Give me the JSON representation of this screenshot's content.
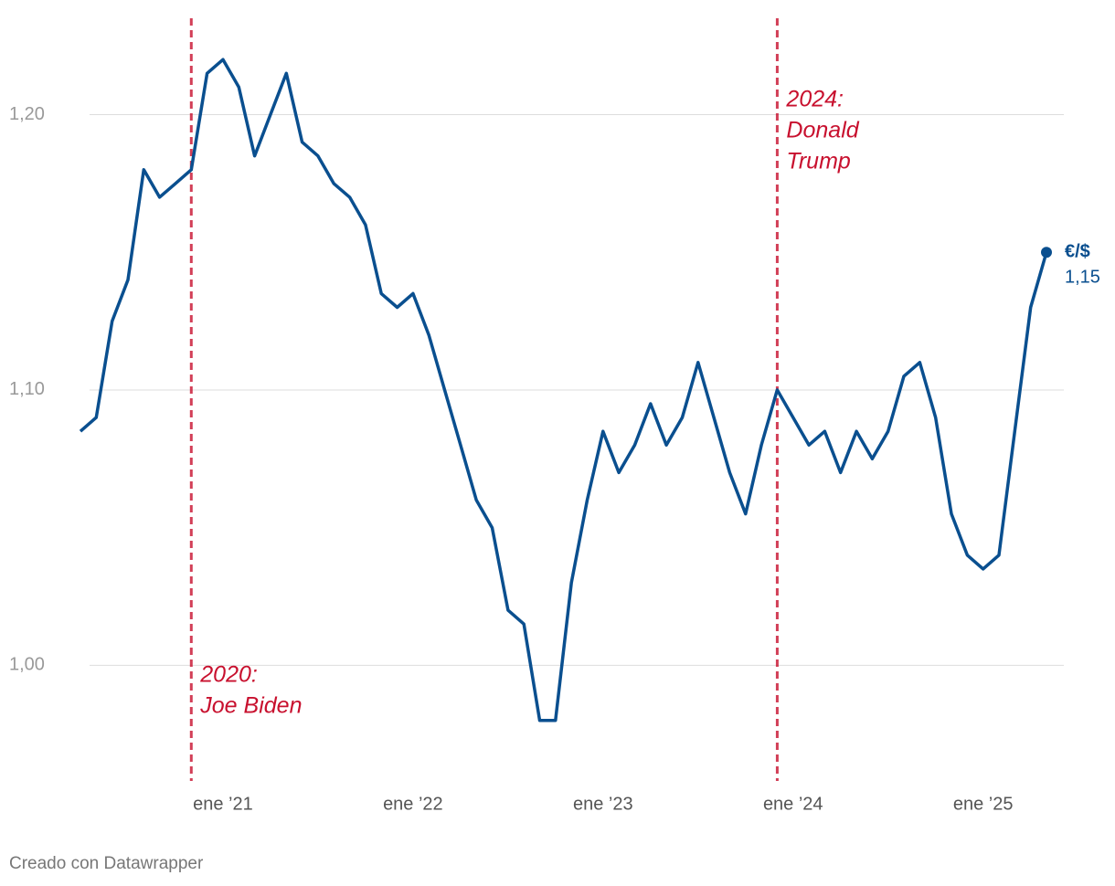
{
  "chart_data": {
    "type": "line",
    "x": [
      "2020-04",
      "2020-05",
      "2020-06",
      "2020-07",
      "2020-08",
      "2020-09",
      "2020-10",
      "2020-11",
      "2020-12",
      "2021-01",
      "2021-02",
      "2021-03",
      "2021-04",
      "2021-05",
      "2021-06",
      "2021-07",
      "2021-08",
      "2021-09",
      "2021-10",
      "2021-11",
      "2021-12",
      "2022-01",
      "2022-02",
      "2022-03",
      "2022-04",
      "2022-05",
      "2022-06",
      "2022-07",
      "2022-08",
      "2022-09",
      "2022-10",
      "2022-11",
      "2022-12",
      "2023-01",
      "2023-02",
      "2023-03",
      "2023-04",
      "2023-05",
      "2023-06",
      "2023-07",
      "2023-08",
      "2023-09",
      "2023-10",
      "2023-11",
      "2023-12",
      "2024-01",
      "2024-02",
      "2024-03",
      "2024-04",
      "2024-05",
      "2024-06",
      "2024-07",
      "2024-08",
      "2024-09",
      "2024-10",
      "2024-11",
      "2024-12",
      "2025-01",
      "2025-02",
      "2025-03",
      "2025-04",
      "2025-05"
    ],
    "series": [
      {
        "name": "€/$",
        "color": "#0a4f8f",
        "values": [
          1.085,
          1.09,
          1.125,
          1.14,
          1.18,
          1.17,
          1.175,
          1.18,
          1.215,
          1.22,
          1.21,
          1.185,
          1.2,
          1.215,
          1.19,
          1.185,
          1.175,
          1.17,
          1.16,
          1.135,
          1.13,
          1.135,
          1.12,
          1.1,
          1.08,
          1.06,
          1.05,
          1.02,
          1.015,
          0.98,
          0.98,
          1.03,
          1.06,
          1.085,
          1.07,
          1.08,
          1.095,
          1.08,
          1.09,
          1.11,
          1.09,
          1.07,
          1.055,
          1.08,
          1.1,
          1.09,
          1.08,
          1.085,
          1.07,
          1.085,
          1.075,
          1.085,
          1.105,
          1.11,
          1.09,
          1.055,
          1.04,
          1.035,
          1.04,
          1.085,
          1.13,
          1.15
        ],
        "value_labels": {
          "61": "1,15"
        }
      }
    ],
    "xlim": [
      "2020-04",
      "2025-05"
    ],
    "xticks": [
      {
        "value": "2021-01",
        "label": "ene ’21"
      },
      {
        "value": "2022-01",
        "label": "ene ’22"
      },
      {
        "value": "2023-01",
        "label": "ene ’23"
      },
      {
        "value": "2024-01",
        "label": "ene ’24"
      },
      {
        "value": "2025-01",
        "label": "ene ’25"
      }
    ],
    "ylim": [
      0.958,
      1.235
    ],
    "yticks": [
      {
        "value": 1.0,
        "label": "1,00"
      },
      {
        "value": 1.1,
        "label": "1,10"
      },
      {
        "value": 1.2,
        "label": "1,20"
      }
    ],
    "grid": true,
    "annotations": [
      {
        "x": "2020-11",
        "text": [
          "2020:",
          "Joe Biden"
        ],
        "position": "bottom",
        "color": "#c8102e"
      },
      {
        "x": "2023-12",
        "text": [
          "2024:",
          "Donald",
          "Trump"
        ],
        "position": "top",
        "color": "#c8102e"
      }
    ],
    "footer": "Creado con Datawrapper"
  }
}
